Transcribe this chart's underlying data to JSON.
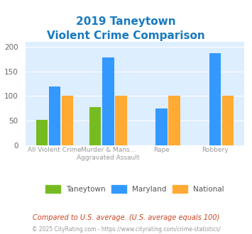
{
  "title_line1": "2019 Taneytown",
  "title_line2": "Violent Crime Comparison",
  "categories": [
    "All Violent Crime",
    "Murder & Mans...\nAggravated Assault",
    "Rape",
    "Robbery"
  ],
  "taneytown": [
    51,
    77,
    0,
    0
  ],
  "maryland": [
    120,
    179,
    75,
    187
  ],
  "national": [
    100,
    101,
    101,
    100
  ],
  "taneytown_color": "#77bb22",
  "maryland_color": "#3399ff",
  "national_color": "#ffaa33",
  "bg_color": "#ddeeff",
  "ylim": [
    0,
    210
  ],
  "yticks": [
    0,
    50,
    100,
    150,
    200
  ],
  "footnote": "Compared to U.S. average. (U.S. average equals 100)",
  "copyright": "© 2025 CityRating.com - https://www.cityrating.com/crime-statistics/",
  "title_color": "#1a7abf",
  "xlabel_color": "#999999",
  "legend_labels": [
    "Taneytown",
    "Maryland",
    "National"
  ]
}
